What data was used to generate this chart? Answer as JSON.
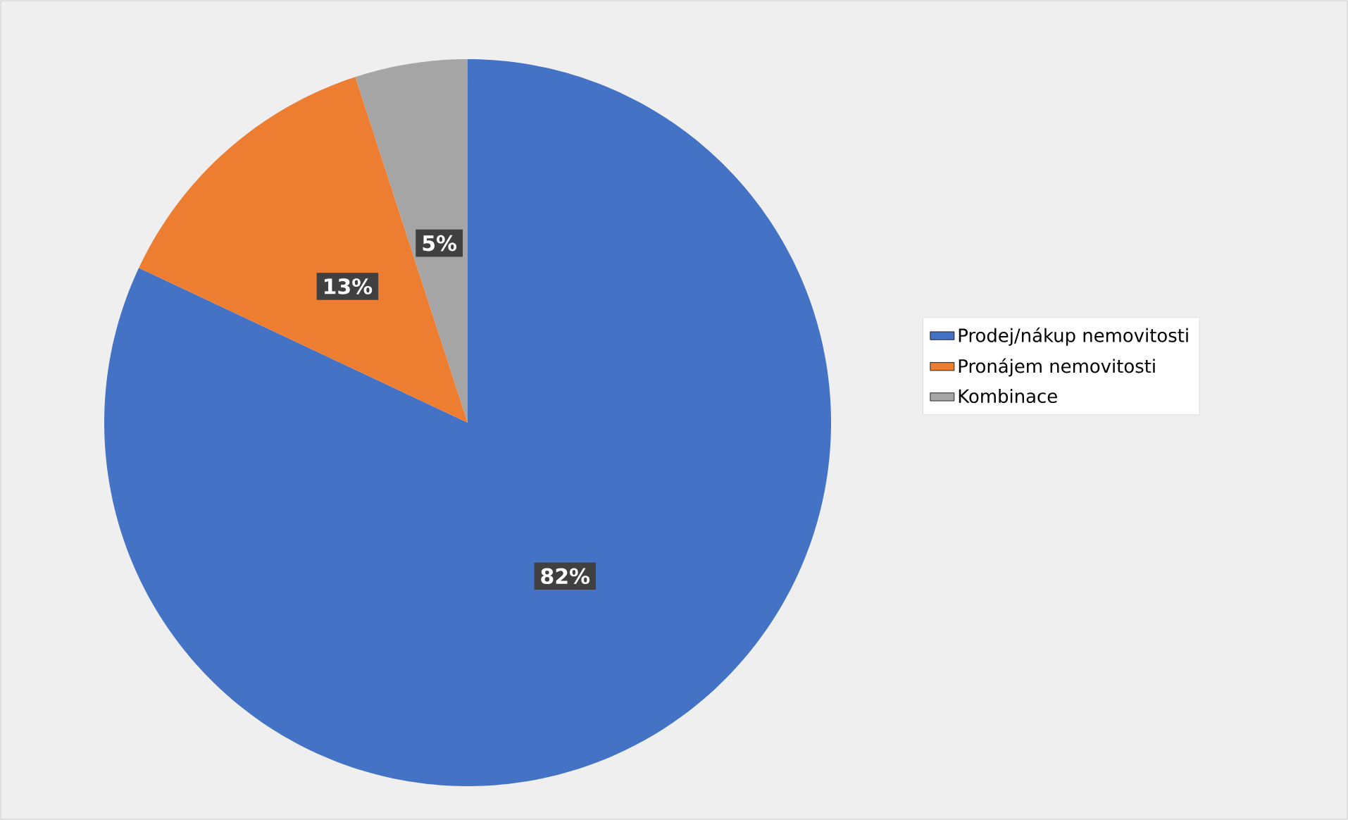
{
  "chart_data": {
    "type": "pie",
    "categories": [
      "Prodej/nákup nemovitosti",
      "Pronájem nemovitosti",
      "Kombinace"
    ],
    "values": [
      82,
      13,
      5
    ],
    "colors": [
      "#4472c4",
      "#ed7d31",
      "#a5a5a5"
    ],
    "value_labels": [
      "82%",
      "13%",
      "5%"
    ],
    "legend": "right"
  }
}
